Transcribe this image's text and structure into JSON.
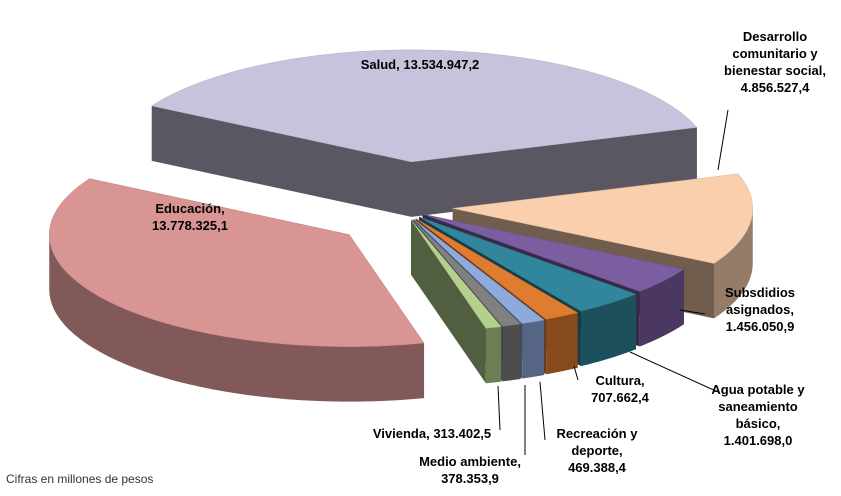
{
  "chart_data": {
    "type": "pie3d",
    "categories": [
      "Salud",
      "Desarrollo comunitario y bienestar social",
      "Subsdidios asignados",
      "Agua potable y saneamiento básico",
      "Cultura",
      "Recreación y deporte",
      "Medio ambiente",
      "Vivienda",
      "Educación"
    ],
    "values": [
      13534947.2,
      4856527.4,
      1456050.9,
      1401698.0,
      707662.4,
      469388.4,
      378353.9,
      313402.5,
      13778325.1
    ],
    "value_labels": [
      "13.534.947,2",
      "4.856.527,4",
      "1.456.050,9",
      "1.401.698,0",
      "707.662,4",
      "469.388,4",
      "378.353,9",
      "313.402,5",
      "13.778.325,1"
    ],
    "colors": [
      "#c9c2dd",
      "#f9cfae",
      "#7b5ea0",
      "#31869b",
      "#e07c30",
      "#8ea9db",
      "#808080",
      "#b5d08e",
      "#d99594"
    ],
    "note": "Cifras en millones de pesos"
  }
}
